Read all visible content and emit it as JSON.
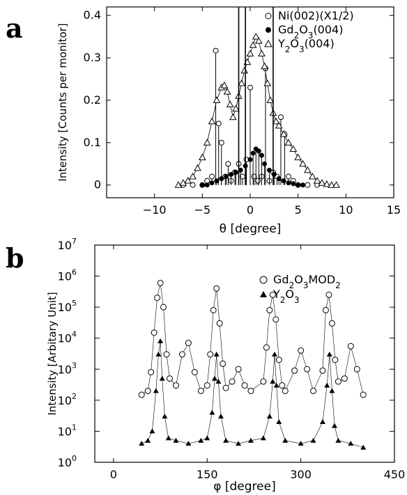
{
  "panels": {
    "a": "a",
    "b": "b"
  },
  "chart_data": [
    {
      "type": "line",
      "panel": "a",
      "xlabel": "θ [degree]",
      "ylabel": "Intensity [Counts per monitor]",
      "xlim": [
        -15,
        15
      ],
      "ylim": [
        -0.03,
        0.42
      ],
      "yscale": "linear",
      "xticks": [
        -10,
        -5,
        0,
        5,
        10,
        15
      ],
      "yticks": [
        0,
        0.1,
        0.2,
        0.3,
        0.4
      ],
      "legend_position": "top-right",
      "series": [
        {
          "name": "Ni(002)(X1/2)",
          "marker": "open-circle",
          "line": "vertical-sticks",
          "x": [
            -7.0,
            -6.0,
            -5.0,
            -4.5,
            -4.0,
            -3.6,
            -3.3,
            -3.0,
            -2.6,
            -2.3,
            -2.0,
            -1.6,
            -1.2,
            -0.8,
            -0.4,
            0.0,
            0.4,
            0.8,
            1.2,
            1.6,
            2.0,
            2.4,
            2.8,
            3.2,
            3.6,
            4.0,
            4.5,
            5.0,
            6.0,
            7.0
          ],
          "y": [
            0.0,
            0.0,
            0.0,
            0.01,
            0.02,
            0.317,
            0.145,
            0.1,
            0.02,
            0.05,
            0.01,
            0.03,
            0.05,
            0.02,
            0.06,
            0.23,
            0.02,
            0.01,
            0.02,
            0.275,
            0.01,
            0.03,
            0.02,
            0.16,
            0.12,
            0.02,
            0.01,
            0.0,
            0.0,
            0.0
          ]
        },
        {
          "name": "Gd2O3(004)",
          "marker": "filled-circle",
          "line": "vertical-sticks",
          "x": [
            -5.0,
            -4.5,
            -4.0,
            -3.5,
            -3.0,
            -2.5,
            -2.0,
            -1.5,
            -1.0,
            -0.5,
            0.0,
            0.3,
            0.6,
            0.9,
            1.2,
            1.5,
            2.0,
            2.5,
            3.0,
            3.5,
            4.0,
            4.5,
            5.0,
            5.5
          ],
          "y": [
            0.0,
            0.0,
            0.005,
            0.01,
            0.015,
            0.02,
            0.025,
            0.03,
            0.035,
            0.045,
            0.06,
            0.075,
            0.085,
            0.08,
            0.07,
            0.05,
            0.035,
            0.025,
            0.015,
            0.01,
            0.005,
            0.003,
            0.0,
            0.0
          ]
        },
        {
          "name": "Y2O3(004)",
          "marker": "open-triangle",
          "line": "none",
          "x": [
            -7.5,
            -7.0,
            -6.5,
            -6.0,
            -5.5,
            -5.0,
            -4.5,
            -4.0,
            -3.5,
            -3.0,
            -2.7,
            -2.4,
            -2.1,
            -1.8,
            -1.5,
            -1.2,
            -0.9,
            -0.6,
            -0.3,
            0.0,
            0.3,
            0.6,
            0.9,
            1.2,
            1.5,
            1.8,
            2.1,
            2.4,
            2.7,
            3.0,
            3.5,
            4.0,
            4.5,
            5.0,
            5.5,
            6.0,
            6.5,
            7.0,
            7.5,
            8.0,
            8.5,
            9.0
          ],
          "y": [
            0.0,
            0.005,
            0.01,
            0.02,
            0.04,
            0.065,
            0.1,
            0.15,
            0.2,
            0.23,
            0.235,
            0.22,
            0.19,
            0.16,
            0.18,
            0.21,
            0.24,
            0.27,
            0.29,
            0.31,
            0.33,
            0.35,
            0.34,
            0.31,
            0.28,
            0.24,
            0.2,
            0.17,
            0.15,
            0.14,
            0.12,
            0.1,
            0.085,
            0.065,
            0.05,
            0.035,
            0.02,
            0.01,
            0.005,
            0.002,
            0.0,
            0.0
          ]
        }
      ],
      "annotations": "many vertical line spikes between about -4 and 3 degrees, several exceeding the top of the axis"
    },
    {
      "type": "scatter",
      "panel": "b",
      "xlabel": "φ [degree]",
      "ylabel": "Intensity [Arbitary Unit]",
      "xlim": [
        -30,
        450
      ],
      "ylim": [
        1,
        10000000
      ],
      "yscale": "log",
      "xticks": [
        0,
        150,
        300,
        450
      ],
      "ytick_exponents": [
        0,
        1,
        2,
        3,
        4,
        5,
        6,
        7
      ],
      "legend_position": "top-right",
      "series": [
        {
          "name": "Gd2O3MOD2",
          "marker": "open-circle",
          "x": [
            45,
            55,
            60,
            65,
            70,
            75,
            80,
            85,
            90,
            100,
            110,
            120,
            130,
            140,
            150,
            155,
            160,
            165,
            170,
            175,
            180,
            190,
            200,
            210,
            220,
            240,
            245,
            250,
            255,
            260,
            265,
            270,
            275,
            290,
            300,
            310,
            320,
            335,
            340,
            345,
            350,
            355,
            360,
            370,
            380,
            390,
            400
          ],
          "y": [
            150,
            200,
            800,
            15000,
            200000,
            600000,
            100000,
            3000,
            500,
            300,
            3000,
            7000,
            800,
            200,
            300,
            3000,
            80000,
            400000,
            30000,
            1500,
            250,
            400,
            1000,
            300,
            200,
            400,
            5000,
            80000,
            250000,
            40000,
            2000,
            300,
            200,
            900,
            4000,
            1000,
            200,
            900,
            80000,
            250000,
            30000,
            2000,
            400,
            500,
            5500,
            1000,
            150
          ]
        },
        {
          "name": "Y2O3",
          "marker": "filled-triangle",
          "x": [
            45,
            55,
            62,
            68,
            72,
            75,
            78,
            82,
            88,
            100,
            120,
            140,
            150,
            158,
            162,
            165,
            168,
            172,
            180,
            200,
            220,
            240,
            250,
            255,
            258,
            261,
            265,
            275,
            300,
            320,
            335,
            342,
            346,
            350,
            354,
            360,
            380,
            400
          ],
          "y": [
            4,
            5,
            10,
            200,
            3000,
            8000,
            500,
            30,
            6,
            5,
            4,
            5,
            6,
            40,
            500,
            3000,
            400,
            30,
            5,
            4,
            5,
            6,
            30,
            400,
            3000,
            300,
            20,
            5,
            4,
            5,
            20,
            300,
            3000,
            200,
            15,
            5,
            4,
            3
          ]
        }
      ]
    }
  ]
}
